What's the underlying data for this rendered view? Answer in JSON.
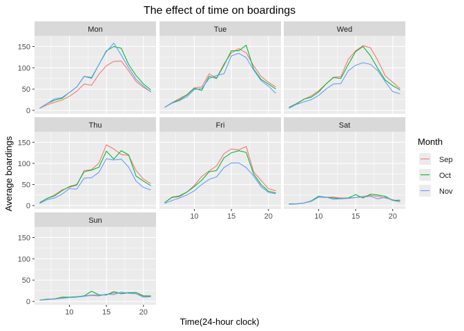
{
  "chart_data": {
    "type": "line",
    "title": "The effect of time on boardings",
    "xlabel": "Time(24-hour clock)",
    "ylabel": "Average boardings",
    "xlim": [
      5.3,
      21.7
    ],
    "ylim": [
      -8,
      175
    ],
    "xticks": [
      10,
      15,
      20
    ],
    "yticks": [
      0,
      50,
      100,
      150
    ],
    "grid": true,
    "facet_layout": "3 columns x 3 rows, shared axes",
    "legend": {
      "title": "Month",
      "placement": "right",
      "entries": [
        {
          "name": "Sep",
          "color": "#F8766D"
        },
        {
          "name": "Oct",
          "color": "#00BA38"
        },
        {
          "name": "Nov",
          "color": "#619CFF"
        }
      ]
    },
    "x": [
      6,
      7,
      8,
      9,
      10,
      11,
      12,
      13,
      14,
      15,
      16,
      17,
      18,
      19,
      20,
      21
    ],
    "facets": [
      {
        "name": "Mon",
        "series": [
          {
            "name": "Sep",
            "values": [
              5,
              13,
              19,
              24,
              33,
              45,
              62,
              59,
              85,
              105,
              115,
              116,
              93,
              68,
              54,
              44
            ]
          },
          {
            "name": "Oct",
            "values": [
              5,
              16,
              24,
              28,
              42,
              55,
              80,
              77,
              108,
              140,
              150,
              146,
              108,
              82,
              62,
              48
            ]
          },
          {
            "name": "Nov",
            "values": [
              5,
              16,
              27,
              30,
              42,
              55,
              80,
              75,
              108,
              138,
              158,
              130,
              100,
              73,
              57,
              43
            ]
          }
        ]
      },
      {
        "name": "Tue",
        "series": [
          {
            "name": "Sep",
            "values": [
              7,
              18,
              28,
              37,
              53,
              55,
              86,
              76,
              109,
              135,
              145,
              135,
              105,
              80,
              66,
              55
            ]
          },
          {
            "name": "Oct",
            "values": [
              7,
              18,
              25,
              36,
              52,
              47,
              80,
              75,
              106,
              140,
              140,
              153,
              97,
              73,
              62,
              50
            ]
          },
          {
            "name": "Nov",
            "values": [
              7,
              17,
              23,
              32,
              49,
              51,
              75,
              82,
              86,
              128,
              134,
              124,
              95,
              70,
              57,
              40
            ]
          }
        ]
      },
      {
        "name": "Wed",
        "series": [
          {
            "name": "Sep",
            "values": [
              7,
              16,
              26,
              34,
              46,
              62,
              78,
              79,
              120,
              140,
              152,
              147,
              117,
              81,
              66,
              51
            ]
          },
          {
            "name": "Oct",
            "values": [
              7,
              15,
              26,
              31,
              43,
              62,
              77,
              75,
              108,
              138,
              150,
              128,
              98,
              71,
              58,
              48
            ]
          },
          {
            "name": "Nov",
            "values": [
              5,
              14,
              20,
              25,
              35,
              50,
              62,
              63,
              93,
              106,
              112,
              108,
              93,
              67,
              44,
              39
            ]
          }
        ]
      },
      {
        "name": "Thu",
        "series": [
          {
            "name": "Sep",
            "values": [
              7,
              17,
              25,
              37,
              43,
              48,
              83,
              85,
              101,
              144,
              134,
              121,
              119,
              83,
              63,
              52
            ]
          },
          {
            "name": "Oct",
            "values": [
              7,
              17,
              23,
              35,
              45,
              50,
              80,
              84,
              91,
              129,
              110,
              130,
              120,
              70,
              58,
              47
            ]
          },
          {
            "name": "Nov",
            "values": [
              5,
              14,
              18,
              27,
              40,
              39,
              65,
              66,
              79,
              111,
              108,
              110,
              91,
              58,
              43,
              37
            ]
          }
        ]
      },
      {
        "name": "Fri",
        "series": [
          {
            "name": "Sep",
            "values": [
              7,
              19,
              21,
              32,
              48,
              69,
              82,
              94,
              123,
              134,
              132,
              140,
              80,
              60,
              40,
              35
            ]
          },
          {
            "name": "Oct",
            "values": [
              7,
              20,
              23,
              32,
              45,
              60,
              80,
              83,
              113,
              125,
              130,
              126,
              75,
              50,
              34,
              30
            ]
          },
          {
            "name": "Nov",
            "values": [
              5,
              12,
              18,
              25,
              35,
              50,
              62,
              68,
              90,
              101,
              101,
              90,
              70,
              45,
              31,
              28
            ]
          }
        ]
      },
      {
        "name": "Sat",
        "series": [
          {
            "name": "Sep",
            "values": [
              4,
              4,
              6,
              10,
              20,
              19,
              20,
              18,
              18,
              19,
              22,
              24,
              22,
              18,
              14,
              10
            ]
          },
          {
            "name": "Oct",
            "values": [
              4,
              4,
              6,
              11,
              22,
              20,
              18,
              16,
              18,
              26,
              18,
              27,
              25,
              22,
              12,
              13
            ]
          },
          {
            "name": "Nov",
            "values": [
              3,
              4,
              6,
              10,
              20,
              20,
              15,
              16,
              17,
              19,
              20,
              22,
              16,
              20,
              12,
              9
            ]
          }
        ]
      },
      {
        "name": "Sun",
        "series": [
          {
            "name": "Sep",
            "values": [
              3,
              5,
              5,
              8,
              9,
              10,
              13,
              15,
              15,
              16,
              20,
              19,
              21,
              18,
              12,
              12
            ]
          },
          {
            "name": "Oct",
            "values": [
              3,
              5,
              6,
              10,
              10,
              11,
              13,
              24,
              15,
              15,
              23,
              18,
              20,
              21,
              13,
              13
            ]
          },
          {
            "name": "Nov",
            "values": [
              3,
              4,
              6,
              7,
              9,
              10,
              12,
              14,
              13,
              17,
              16,
              22,
              19,
              18,
              10,
              11
            ]
          }
        ]
      }
    ]
  }
}
